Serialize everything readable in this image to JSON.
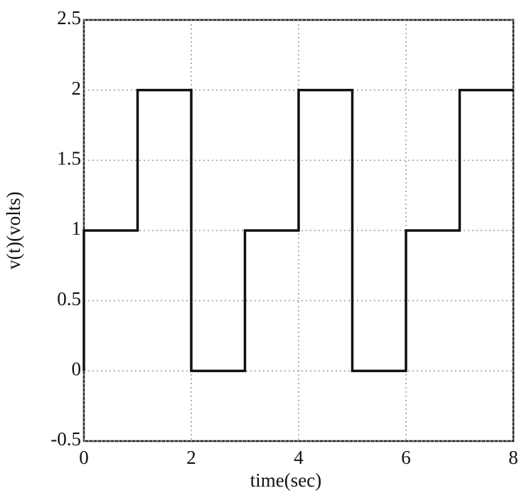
{
  "chart_data": {
    "type": "line",
    "x_label": "time(sec)",
    "y_label": "v(t)(volts)",
    "x": [
      0,
      0,
      1,
      1,
      2,
      2,
      3,
      3,
      4,
      4,
      5,
      5,
      6,
      6,
      7,
      7,
      8
    ],
    "series": [
      {
        "color": "#111111",
        "values": [
          0,
          1,
          1,
          2,
          2,
          0,
          0,
          1,
          1,
          2,
          2,
          0,
          0,
          1,
          1,
          2,
          2
        ]
      }
    ],
    "xlim": [
      0,
      8
    ],
    "xticks": [
      0,
      2,
      4,
      6,
      8
    ],
    "ylim": [
      -0.5,
      2.5
    ],
    "yticks": [
      -0.5,
      0,
      0.5,
      1,
      1.5,
      2,
      2.5
    ],
    "grid": true
  }
}
